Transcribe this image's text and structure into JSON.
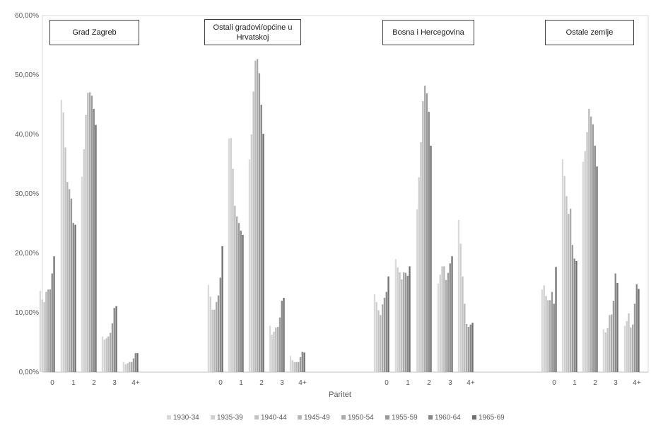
{
  "chart_data": {
    "type": "bar",
    "xlabel": "Paritet",
    "ylabel": "",
    "ylim": [
      0,
      0.6
    ],
    "yticks": [
      "0,00%",
      "10,00%",
      "20,00%",
      "30,00%",
      "40,00%",
      "50,00%",
      "60,00%"
    ],
    "grid": false,
    "legend_position": "bottom",
    "categories": [
      "0",
      "1",
      "2",
      "3",
      "4+"
    ],
    "series_names": [
      "1930-34",
      "1935-39",
      "1940-44",
      "1945-49",
      "1950-54",
      "1955-59",
      "1960-64",
      "1965-69"
    ],
    "colors": [
      "#d9d9d9",
      "#cfcfcf",
      "#c4c4c4",
      "#b8b8b8",
      "#ababab",
      "#9a9a9a",
      "#878787",
      "#6f6f6f"
    ],
    "groups": [
      {
        "label": "Grad Zagreb",
        "values": [
          [
            0.137,
            0.122,
            0.118,
            0.135,
            0.139,
            0.139,
            0.166,
            0.195
          ],
          [
            0.458,
            0.437,
            0.378,
            0.32,
            0.308,
            0.292,
            0.251,
            0.248
          ],
          [
            0.329,
            0.375,
            0.433,
            0.47,
            0.471,
            0.465,
            0.443,
            0.416
          ],
          [
            0.06,
            0.055,
            0.057,
            0.06,
            0.066,
            0.082,
            0.108,
            0.111
          ],
          [
            0.017,
            0.013,
            0.015,
            0.017,
            0.017,
            0.023,
            0.032,
            0.032
          ]
        ]
      },
      {
        "label": "Ostali gradovi/općine u Hrvatskoj",
        "values": [
          [
            0.147,
            0.127,
            0.105,
            0.105,
            0.118,
            0.129,
            0.159,
            0.212
          ],
          [
            0.393,
            0.394,
            0.342,
            0.28,
            0.262,
            0.251,
            0.238,
            0.231
          ],
          [
            0.358,
            0.4,
            0.472,
            0.524,
            0.527,
            0.503,
            0.45,
            0.401
          ],
          [
            0.078,
            0.063,
            0.068,
            0.075,
            0.076,
            0.092,
            0.12,
            0.125
          ],
          [
            0.027,
            0.02,
            0.017,
            0.017,
            0.017,
            0.025,
            0.034,
            0.033
          ]
        ]
      },
      {
        "label": "Bosna i Hercegovina",
        "values": [
          [
            0.131,
            0.118,
            0.104,
            0.096,
            0.114,
            0.125,
            0.135,
            0.161
          ],
          [
            0.19,
            0.176,
            0.168,
            0.156,
            0.168,
            0.167,
            0.162,
            0.178
          ],
          [
            0.274,
            0.328,
            0.387,
            0.456,
            0.482,
            0.469,
            0.438,
            0.381
          ],
          [
            0.149,
            0.164,
            0.178,
            0.178,
            0.155,
            0.167,
            0.183,
            0.195
          ],
          [
            0.256,
            0.216,
            0.161,
            0.115,
            0.081,
            0.076,
            0.08,
            0.083
          ]
        ]
      },
      {
        "label": "Ostale zemlje",
        "values": [
          [
            0.139,
            0.146,
            0.128,
            0.121,
            0.121,
            0.135,
            0.115,
            0.177
          ],
          [
            0.358,
            0.33,
            0.296,
            0.266,
            0.275,
            0.214,
            0.191,
            0.187
          ],
          [
            0.354,
            0.372,
            0.404,
            0.443,
            0.43,
            0.417,
            0.381,
            0.346
          ],
          [
            0.072,
            0.067,
            0.074,
            0.096,
            0.097,
            0.12,
            0.166,
            0.15
          ],
          [
            0.078,
            0.086,
            0.099,
            0.075,
            0.08,
            0.115,
            0.148,
            0.14
          ]
        ]
      }
    ]
  }
}
